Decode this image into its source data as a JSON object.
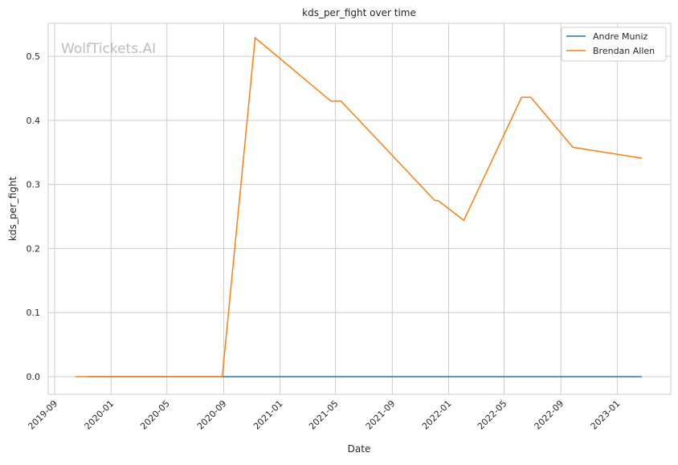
{
  "chart_data": {
    "type": "line",
    "title": "kds_per_fight over time",
    "xlabel": "Date",
    "ylabel": "kds_per_fight",
    "watermark": "WolfTickets.AI",
    "xlim": [
      "2019-08-18",
      "2023-04-27"
    ],
    "ylim": [
      -0.0276,
      0.5515
    ],
    "grid": true,
    "legend_placement": "top-right",
    "x_ticks": [
      "2019-09",
      "2020-01",
      "2020-05",
      "2020-09",
      "2021-01",
      "2021-05",
      "2021-09",
      "2022-01",
      "2022-05",
      "2022-09",
      "2023-01"
    ],
    "y_ticks": [
      0.0,
      0.1,
      0.2,
      0.3,
      0.4,
      0.5
    ],
    "y_tick_labels": [
      "0.0",
      "0.1",
      "0.2",
      "0.3",
      "0.4",
      "0.5"
    ],
    "series": [
      {
        "name": "Andre Muniz",
        "color": "#1f77b4",
        "x": [
          "2019-11-12",
          "2020-08-29",
          "2020-11-08",
          "2021-04-21",
          "2021-05-13",
          "2021-12-02",
          "2021-12-09",
          "2022-02-03",
          "2022-06-08",
          "2022-06-28",
          "2022-09-27",
          "2023-02-23"
        ],
        "y": [
          0,
          0,
          0,
          0,
          0,
          0,
          0,
          0,
          0,
          0,
          0,
          0
        ]
      },
      {
        "name": "Brendan Allen",
        "color": "#ff7f0e",
        "x": [
          "2019-10-16",
          "2019-11-12",
          "2020-08-29",
          "2020-11-08",
          "2021-04-21",
          "2021-05-13",
          "2021-12-02",
          "2021-12-09",
          "2022-02-03",
          "2022-06-08",
          "2022-06-28",
          "2022-09-27",
          "2023-02-23"
        ],
        "y": [
          0,
          0,
          0,
          0.529,
          0.43,
          0.43,
          0.275,
          0.275,
          0.244,
          0.436,
          0.436,
          0.358,
          0.341
        ]
      }
    ]
  }
}
